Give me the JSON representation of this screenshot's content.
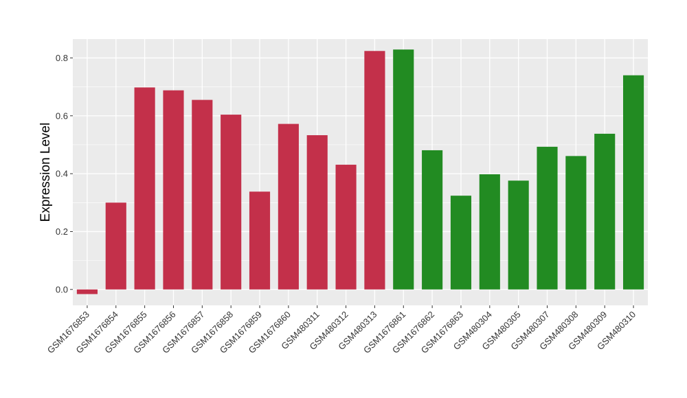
{
  "chart_data": {
    "type": "bar",
    "title": "",
    "xlabel": "",
    "ylabel": "Expression Level",
    "ylim": [
      -0.055,
      0.865
    ],
    "yticks": [
      0.0,
      0.2,
      0.4,
      0.6,
      0.8
    ],
    "ytick_labels": [
      "0.0",
      "0.2",
      "0.4",
      "0.6",
      "0.8"
    ],
    "grid": true,
    "legend": "none",
    "colors": {
      "group1": "#C3304A",
      "group2": "#228B22",
      "panel": "#EBEBEB",
      "gridline": "#FFFFFF"
    },
    "categories": [
      "GSM1676853",
      "GSM1676854",
      "GSM1676855",
      "GSM1676856",
      "GSM1676857",
      "GSM1676858",
      "GSM1676859",
      "GSM1676860",
      "GSM480311",
      "GSM480312",
      "GSM480313",
      "GSM1676861",
      "GSM1676862",
      "GSM1676863",
      "GSM480304",
      "GSM480305",
      "GSM480307",
      "GSM480308",
      "GSM480309",
      "GSM480310"
    ],
    "values": [
      -0.016,
      0.3,
      0.698,
      0.688,
      0.655,
      0.604,
      0.338,
      0.572,
      0.533,
      0.431,
      0.824,
      0.829,
      0.481,
      0.324,
      0.398,
      0.376,
      0.493,
      0.461,
      0.538,
      0.74
    ],
    "groups": [
      1,
      1,
      1,
      1,
      1,
      1,
      1,
      1,
      1,
      1,
      1,
      2,
      2,
      2,
      2,
      2,
      2,
      2,
      2,
      2
    ]
  }
}
